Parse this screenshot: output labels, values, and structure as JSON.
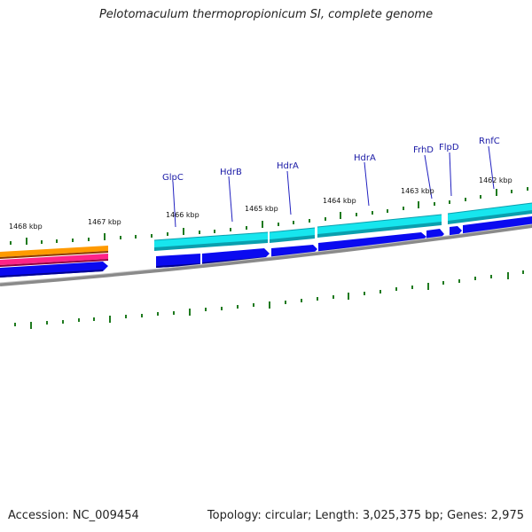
{
  "title": "Pelotomaculum thermopropionicum SI, complete genome",
  "footer": {
    "accession": "Accession: NC_009454",
    "stats": "Topology: circular; Length: 3,025,375 bp; Genes: 2,975"
  },
  "scale": {
    "unit": "kbp",
    "labels": [
      "1468 kbp",
      "1467 kbp",
      "1466 kbp",
      "1465 kbp",
      "1464 kbp",
      "1463 kbp",
      "1462 kbp"
    ]
  },
  "genes": [
    {
      "name": "GlpC"
    },
    {
      "name": "HdrB"
    },
    {
      "name": "HdrA"
    },
    {
      "name": "HdrA"
    },
    {
      "name": "FrhD"
    },
    {
      "name": "FlpD"
    },
    {
      "name": "RnfC"
    }
  ],
  "colors": {
    "cds": "#0a0af0",
    "gene": "#17e6ee",
    "backbone": "#8a8a8a",
    "tick": "#1f7a1f",
    "label_line": "#2020c0",
    "feature_orange": "#ff9a00",
    "feature_magenta": "#ff2288"
  }
}
